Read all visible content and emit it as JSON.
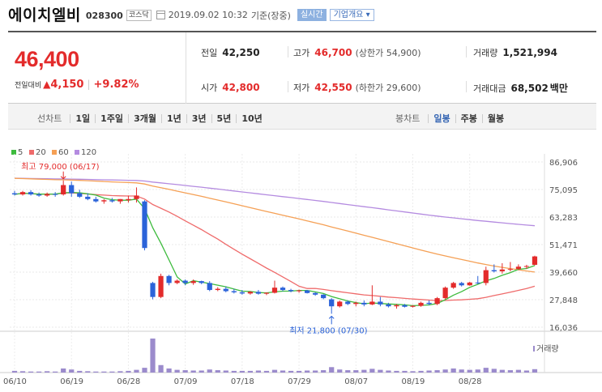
{
  "header": {
    "company": "에이치엘비",
    "code": "028300",
    "market": "코스닥",
    "datetime": "2019.09.02 10:32",
    "basis": "기준(장중)",
    "realtime": "실시간",
    "company_info": "기업개요"
  },
  "summary": {
    "price": "46,400",
    "change_label": "전일대비",
    "change_value": "4,150",
    "change_percent": "+9.82%",
    "prev_close_label": "전일",
    "prev_close": "42,250",
    "high_label": "고가",
    "high": "46,700",
    "upper_limit": "(상한가 54,900)",
    "volume_label": "거래량",
    "volume": "1,521,994",
    "open_label": "시가",
    "open": "42,800",
    "low_label": "저가",
    "low": "42,550",
    "lower_limit": "(하한가 29,600)",
    "amount_label": "거래대금",
    "amount": "68,502",
    "amount_unit": "백만"
  },
  "tabs": {
    "line_label": "선차트",
    "line_items": [
      "1일",
      "1주일",
      "3개월",
      "1년",
      "3년",
      "5년",
      "10년"
    ],
    "candle_label": "봉차트",
    "candle_items": [
      "일봉",
      "주봉",
      "월봉"
    ],
    "active_candle": "일봉"
  },
  "colors": {
    "up": "#e32b2b",
    "down": "#2b63d9",
    "ma5": "#3dbb3d",
    "ma20": "#ef6b6b",
    "ma60": "#f5a055",
    "ma120": "#b48be0",
    "volume": "#9b8bcc"
  },
  "chart_data": {
    "type": "candlestick",
    "legend": [
      "5",
      "20",
      "60",
      "120"
    ],
    "ylim": [
      16036,
      86906
    ],
    "y_ticks": [
      "86,906",
      "75,095",
      "63,283",
      "51,471",
      "39,660",
      "27,848",
      "16,036"
    ],
    "x_ticks": [
      "06/10",
      "06/19",
      "06/28",
      "07/09",
      "07/18",
      "07/29",
      "08/07",
      "08/19",
      "08/28"
    ],
    "high_annotation": "최고 79,000 (06/17)",
    "low_annotation": "최저 21,800 (07/30)",
    "volume_legend": "거래량",
    "candles": [
      [
        73500,
        74500,
        72500,
        73000
      ],
      [
        73000,
        74500,
        72500,
        74000
      ],
      [
        74000,
        74800,
        72500,
        73000
      ],
      [
        73000,
        73800,
        72000,
        72500
      ],
      [
        72500,
        73800,
        72000,
        73200
      ],
      [
        73200,
        74000,
        72000,
        72800
      ],
      [
        73000,
        79000,
        72500,
        77000
      ],
      [
        77000,
        78500,
        72000,
        73500
      ],
      [
        73500,
        75000,
        71500,
        72000
      ],
      [
        72000,
        73500,
        70500,
        71000
      ],
      [
        71000,
        72000,
        69500,
        70000
      ],
      [
        70000,
        71000,
        69000,
        70500
      ],
      [
        70500,
        71500,
        69500,
        70000
      ],
      [
        70000,
        71000,
        69000,
        71000
      ],
      [
        70500,
        72500,
        69500,
        71000
      ],
      [
        71000,
        76000,
        69500,
        72500
      ],
      [
        70000,
        70500,
        49000,
        50000
      ],
      [
        35000,
        35500,
        28000,
        29000
      ],
      [
        29000,
        39000,
        28500,
        38000
      ],
      [
        38000,
        38500,
        34000,
        35000
      ],
      [
        35000,
        36500,
        34500,
        36000
      ],
      [
        36000,
        36500,
        34000,
        35000
      ],
      [
        35000,
        36500,
        34200,
        35800
      ],
      [
        35800,
        36000,
        34500,
        35000
      ],
      [
        35000,
        35800,
        31500,
        32000
      ],
      [
        32000,
        33200,
        31500,
        32500
      ],
      [
        32500,
        33500,
        31000,
        31500
      ],
      [
        31500,
        32500,
        30500,
        31000
      ],
      [
        31000,
        32000,
        30000,
        30500
      ],
      [
        30500,
        31500,
        30000,
        31200
      ],
      [
        31200,
        32000,
        30000,
        30400
      ],
      [
        30400,
        31000,
        29800,
        30800
      ],
      [
        30800,
        36000,
        30500,
        33000
      ],
      [
        33000,
        33500,
        31500,
        32000
      ],
      [
        32000,
        32500,
        31000,
        31500
      ],
      [
        31500,
        32200,
        30800,
        31800
      ],
      [
        31800,
        32000,
        30500,
        30700
      ],
      [
        30700,
        31000,
        29500,
        30000
      ],
      [
        30000,
        30200,
        28000,
        28500
      ],
      [
        28000,
        28500,
        21800,
        25000
      ],
      [
        25000,
        27500,
        24500,
        27000
      ],
      [
        27000,
        27500,
        25500,
        26000
      ],
      [
        26000,
        27000,
        25000,
        26500
      ],
      [
        26500,
        27500,
        25000,
        25800
      ],
      [
        25800,
        34000,
        25500,
        27000
      ],
      [
        27000,
        29000,
        25000,
        25800
      ],
      [
        25800,
        26500,
        24500,
        25000
      ],
      [
        25000,
        26000,
        24000,
        25500
      ],
      [
        25500,
        26000,
        24500,
        24800
      ],
      [
        24800,
        25500,
        24500,
        25200
      ],
      [
        25200,
        27000,
        24800,
        26500
      ],
      [
        26500,
        27500,
        25500,
        26000
      ],
      [
        26000,
        29000,
        25500,
        28500
      ],
      [
        28500,
        33500,
        28000,
        33000
      ],
      [
        33000,
        35500,
        32500,
        35000
      ],
      [
        35000,
        35500,
        33500,
        34000
      ],
      [
        34000,
        35500,
        33800,
        35200
      ],
      [
        35200,
        38000,
        34500,
        35000
      ],
      [
        35000,
        42000,
        34000,
        40500
      ],
      [
        40500,
        43000,
        39500,
        40000
      ],
      [
        40000,
        43500,
        39000,
        40800
      ],
      [
        40800,
        44000,
        40000,
        41000
      ],
      [
        41000,
        43000,
        40500,
        42000
      ],
      [
        42000,
        42800,
        41000,
        42250
      ],
      [
        42800,
        46700,
        42550,
        46400
      ]
    ],
    "volumes": [
      5,
      4,
      3,
      3,
      4,
      3,
      12,
      9,
      5,
      4,
      3,
      3,
      3,
      4,
      5,
      8,
      14,
      100,
      22,
      12,
      8,
      7,
      6,
      6,
      9,
      7,
      6,
      5,
      5,
      5,
      6,
      5,
      8,
      6,
      5,
      5,
      6,
      6,
      7,
      16,
      9,
      7,
      7,
      8,
      11,
      8,
      6,
      5,
      5,
      4,
      5,
      6,
      7,
      9,
      12,
      9,
      8,
      9,
      14,
      11,
      8,
      7,
      8,
      6,
      10
    ]
  }
}
